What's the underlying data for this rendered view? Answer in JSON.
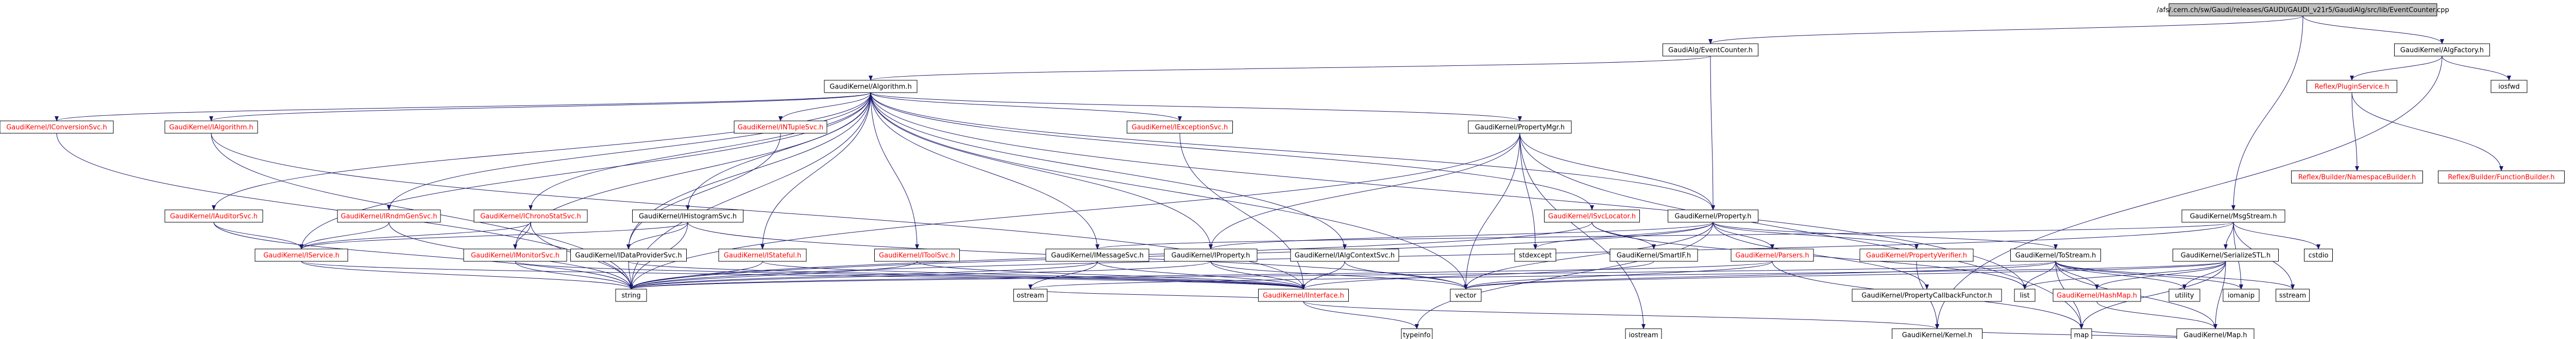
{
  "colors": {
    "root_fill": "#bfbfbf",
    "node_fill": "#ffffff",
    "node_border": "#000000",
    "text_black": "#000000",
    "text_red": "#ff0000",
    "edge": "#191970"
  },
  "diagram": {
    "nodes": [
      {
        "id": "root",
        "label": "/afs/.cern.ch/sw/Gaudi/releases/GAUDI/GAUDI_v21r5/GaudiAlg/src/lib/EventCounter.cpp",
        "kind": "root"
      },
      {
        "id": "ec_h",
        "label": "GaudiAlg/EventCounter.h",
        "kind": "normal"
      },
      {
        "id": "algfactory",
        "label": "GaudiKernel/AlgFactory.h",
        "kind": "normal"
      },
      {
        "id": "algorithm",
        "label": "GaudiKernel/Algorithm.h",
        "kind": "normal"
      },
      {
        "id": "pluginservice",
        "label": "Reflex/PluginService.h",
        "kind": "red"
      },
      {
        "id": "iosfwd",
        "label": "iosfwd",
        "kind": "normal"
      },
      {
        "id": "nsbuilder",
        "label": "Reflex/Builder/NamespaceBuilder.h",
        "kind": "red"
      },
      {
        "id": "fnbuilder",
        "label": "Reflex/Builder/FunctionBuilder.h",
        "kind": "red"
      },
      {
        "id": "iconvsvc",
        "label": "GaudiKernel/IConversionSvc.h",
        "kind": "red"
      },
      {
        "id": "ialgorithm",
        "label": "GaudiKernel/IAlgorithm.h",
        "kind": "red"
      },
      {
        "id": "intuplesvc",
        "label": "GaudiKernel/INTupleSvc.h",
        "kind": "red"
      },
      {
        "id": "iexceptionsvc",
        "label": "GaudiKernel/IExceptionSvc.h",
        "kind": "red"
      },
      {
        "id": "propertymgr",
        "label": "GaudiKernel/PropertyMgr.h",
        "kind": "normal"
      },
      {
        "id": "msgstream",
        "label": "GaudiKernel/MsgStream.h",
        "kind": "normal"
      },
      {
        "id": "iauditorsvc",
        "label": "GaudiKernel/IAuditorSvc.h",
        "kind": "red"
      },
      {
        "id": "irndmgensvc",
        "label": "GaudiKernel/IRndmGenSvc.h",
        "kind": "red"
      },
      {
        "id": "ichronostat",
        "label": "GaudiKernel/IChronoStatSvc.h",
        "kind": "red"
      },
      {
        "id": "histogramsvc",
        "label": "GaudiKernel/IHistogramSvc.h",
        "kind": "normal"
      },
      {
        "id": "isvclocator",
        "label": "GaudiKernel/ISvcLocator.h",
        "kind": "red"
      },
      {
        "id": "property",
        "label": "GaudiKernel/Property.h",
        "kind": "normal"
      },
      {
        "id": "cstdio",
        "label": "cstdio",
        "kind": "normal"
      },
      {
        "id": "iservice",
        "label": "GaudiKernel/IService.h",
        "kind": "red"
      },
      {
        "id": "imonitorsvc",
        "label": "GaudiKernel/IMonitorSvc.h",
        "kind": "red"
      },
      {
        "id": "idataprovider",
        "label": "GaudiKernel/IDataProviderSvc.h",
        "kind": "normal"
      },
      {
        "id": "istateful",
        "label": "GaudiKernel/IStateful.h",
        "kind": "red"
      },
      {
        "id": "itoolsvc",
        "label": "GaudiKernel/IToolSvc.h",
        "kind": "red"
      },
      {
        "id": "imessagesvc",
        "label": "GaudiKernel/IMessageSvc.h",
        "kind": "normal"
      },
      {
        "id": "iproperty",
        "label": "GaudiKernel/IProperty.h",
        "kind": "normal"
      },
      {
        "id": "ialgcontext",
        "label": "GaudiKernel/IAlgContextSvc.h",
        "kind": "normal"
      },
      {
        "id": "stdexcept",
        "label": "stdexcept",
        "kind": "normal"
      },
      {
        "id": "smartif",
        "label": "GaudiKernel/SmartIF.h",
        "kind": "normal"
      },
      {
        "id": "parsers",
        "label": "GaudiKernel/Parsers.h",
        "kind": "red"
      },
      {
        "id": "propverifier",
        "label": "GaudiKernel/PropertyVerifier.h",
        "kind": "red"
      },
      {
        "id": "tostream",
        "label": "GaudiKernel/ToStream.h",
        "kind": "normal"
      },
      {
        "id": "serializestl",
        "label": "GaudiKernel/SerializeSTL.h",
        "kind": "normal"
      },
      {
        "id": "string",
        "label": "string",
        "kind": "normal"
      },
      {
        "id": "ostream",
        "label": "ostream",
        "kind": "normal"
      },
      {
        "id": "iinterface",
        "label": "GaudiKernel/IInterface.h",
        "kind": "red"
      },
      {
        "id": "vector",
        "label": "vector",
        "kind": "normal"
      },
      {
        "id": "list",
        "label": "list",
        "kind": "normal"
      },
      {
        "id": "propcallback",
        "label": "GaudiKernel/PropertyCallbackFunctor.h",
        "kind": "normal"
      },
      {
        "id": "hashmap",
        "label": "GaudiKernel/HashMap.h",
        "kind": "red"
      },
      {
        "id": "utility",
        "label": "utility",
        "kind": "normal"
      },
      {
        "id": "iomanip",
        "label": "iomanip",
        "kind": "normal"
      },
      {
        "id": "sstream",
        "label": "sstream",
        "kind": "normal"
      },
      {
        "id": "typeinfo",
        "label": "typeinfo",
        "kind": "normal"
      },
      {
        "id": "iostream",
        "label": "iostream",
        "kind": "normal"
      },
      {
        "id": "kernel",
        "label": "GaudiKernel/Kernel.h",
        "kind": "normal"
      },
      {
        "id": "gkmap",
        "label": "GaudiKernel/Map.h",
        "kind": "normal"
      },
      {
        "id": "map",
        "label": "map",
        "kind": "normal"
      }
    ],
    "edges": [
      [
        "root",
        "ec_h"
      ],
      [
        "root",
        "algfactory"
      ],
      [
        "root",
        "msgstream"
      ],
      [
        "ec_h",
        "algorithm"
      ],
      [
        "ec_h",
        "property"
      ],
      [
        "algfactory",
        "pluginservice"
      ],
      [
        "algfactory",
        "iosfwd"
      ],
      [
        "algfactory",
        "kernel"
      ],
      [
        "pluginservice",
        "nsbuilder"
      ],
      [
        "pluginservice",
        "fnbuilder"
      ],
      [
        "algorithm",
        "iconvsvc"
      ],
      [
        "algorithm",
        "ialgorithm"
      ],
      [
        "algorithm",
        "intuplesvc"
      ],
      [
        "algorithm",
        "iexceptionsvc"
      ],
      [
        "algorithm",
        "propertymgr"
      ],
      [
        "algorithm",
        "iauditorsvc"
      ],
      [
        "algorithm",
        "irndmgensvc"
      ],
      [
        "algorithm",
        "ichronostat"
      ],
      [
        "algorithm",
        "histogramsvc"
      ],
      [
        "algorithm",
        "isvclocator"
      ],
      [
        "algorithm",
        "property"
      ],
      [
        "algorithm",
        "iservice"
      ],
      [
        "algorithm",
        "imonitorsvc"
      ],
      [
        "algorithm",
        "idataprovider"
      ],
      [
        "algorithm",
        "istateful"
      ],
      [
        "algorithm",
        "itoolsvc"
      ],
      [
        "algorithm",
        "imessagesvc"
      ],
      [
        "algorithm",
        "ialgcontext"
      ],
      [
        "algorithm",
        "iproperty"
      ],
      [
        "algorithm",
        "string"
      ],
      [
        "algorithm",
        "vector"
      ],
      [
        "algorithm",
        "list"
      ],
      [
        "iconvsvc",
        "string"
      ],
      [
        "ialgorithm",
        "iinterface"
      ],
      [
        "ialgorithm",
        "string"
      ],
      [
        "intuplesvc",
        "idataprovider"
      ],
      [
        "iexceptionsvc",
        "iinterface"
      ],
      [
        "propertymgr",
        "iproperty"
      ],
      [
        "propertymgr",
        "property"
      ],
      [
        "propertymgr",
        "stdexcept"
      ],
      [
        "propertymgr",
        "vector"
      ],
      [
        "propertymgr",
        "string"
      ],
      [
        "propertymgr",
        "iostream"
      ],
      [
        "propertymgr",
        "map"
      ],
      [
        "iauditorsvc",
        "iservice"
      ],
      [
        "iauditorsvc",
        "string"
      ],
      [
        "irndmgensvc",
        "iservice"
      ],
      [
        "irndmgensvc",
        "string"
      ],
      [
        "ichronostat",
        "iservice"
      ],
      [
        "ichronostat",
        "string"
      ],
      [
        "ichronostat",
        "imonitorsvc"
      ],
      [
        "histogramsvc",
        "idataprovider"
      ],
      [
        "histogramsvc",
        "iservice"
      ],
      [
        "histogramsvc",
        "string"
      ],
      [
        "histogramsvc",
        "vector"
      ],
      [
        "isvclocator",
        "smartif"
      ],
      [
        "isvclocator",
        "string"
      ],
      [
        "isvclocator",
        "list"
      ],
      [
        "property",
        "parsers"
      ],
      [
        "property",
        "propverifier"
      ],
      [
        "property",
        "tostream"
      ],
      [
        "property",
        "propcallback"
      ],
      [
        "property",
        "iproperty"
      ],
      [
        "property",
        "stdexcept"
      ],
      [
        "property",
        "string"
      ],
      [
        "property",
        "vector"
      ],
      [
        "property",
        "typeinfo"
      ],
      [
        "msgstream",
        "imessagesvc"
      ],
      [
        "msgstream",
        "serializestl"
      ],
      [
        "msgstream",
        "cstdio"
      ],
      [
        "msgstream",
        "string"
      ],
      [
        "msgstream",
        "iomanip"
      ],
      [
        "msgstream",
        "sstream"
      ],
      [
        "iservice",
        "iinterface"
      ],
      [
        "iservice",
        "string"
      ],
      [
        "imonitorsvc",
        "iinterface"
      ],
      [
        "imonitorsvc",
        "string"
      ],
      [
        "idataprovider",
        "iinterface"
      ],
      [
        "idataprovider",
        "string"
      ],
      [
        "istateful",
        "iinterface"
      ],
      [
        "istateful",
        "string"
      ],
      [
        "itoolsvc",
        "iinterface"
      ],
      [
        "itoolsvc",
        "string"
      ],
      [
        "imessagesvc",
        "iinterface"
      ],
      [
        "imessagesvc",
        "string"
      ],
      [
        "imessagesvc",
        "ostream"
      ],
      [
        "iproperty",
        "iinterface"
      ],
      [
        "iproperty",
        "string"
      ],
      [
        "iproperty",
        "vector"
      ],
      [
        "ialgcontext",
        "iinterface"
      ],
      [
        "ialgcontext",
        "vector"
      ],
      [
        "smartif",
        "iinterface"
      ],
      [
        "parsers",
        "string"
      ],
      [
        "parsers",
        "vector"
      ],
      [
        "parsers",
        "map"
      ],
      [
        "propverifier",
        "kernel"
      ],
      [
        "tostream",
        "hashmap"
      ],
      [
        "tostream",
        "gkmap"
      ],
      [
        "tostream",
        "vector"
      ],
      [
        "tostream",
        "list"
      ],
      [
        "tostream",
        "utility"
      ],
      [
        "tostream",
        "string"
      ],
      [
        "tostream",
        "iomanip"
      ],
      [
        "tostream",
        "sstream"
      ],
      [
        "tostream",
        "map"
      ],
      [
        "serializestl",
        "vector"
      ],
      [
        "serializestl",
        "list"
      ],
      [
        "serializestl",
        "utility"
      ],
      [
        "serializestl",
        "hashmap"
      ],
      [
        "serializestl",
        "gkmap"
      ],
      [
        "serializestl",
        "map"
      ],
      [
        "serializestl",
        "ostream"
      ],
      [
        "iinterface",
        "kernel"
      ],
      [
        "iinterface",
        "ostream"
      ],
      [
        "iinterface",
        "typeinfo"
      ],
      [
        "hashmap",
        "gkmap"
      ],
      [
        "gkmap",
        "map"
      ],
      [
        "gkmap",
        "kernel"
      ]
    ]
  }
}
